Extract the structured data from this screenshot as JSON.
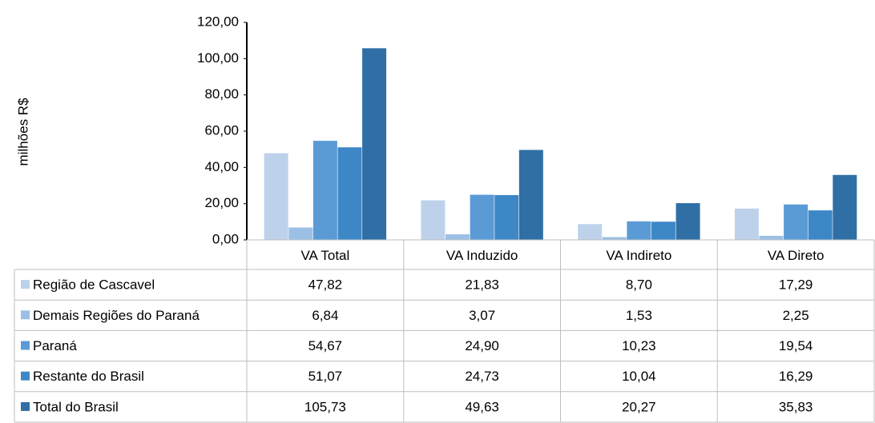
{
  "chart_data": {
    "type": "bar",
    "y_label": "milhões R$",
    "categories": [
      "VA Total",
      "VA Induzido",
      "VA Indireto",
      "VA Direto"
    ],
    "series": [
      {
        "name": "Região de Cascavel",
        "color": "#bdd2ea",
        "values": [
          47.82,
          21.83,
          8.7,
          17.29
        ],
        "value_labels": [
          "47,82",
          "21,83",
          "8,70",
          "17,29"
        ]
      },
      {
        "name": "Demais Regiões do Paraná",
        "color": "#9cc0e5",
        "values": [
          6.84,
          3.07,
          1.53,
          2.25
        ],
        "value_labels": [
          "6,84",
          "3,07",
          "1,53",
          "2,25"
        ]
      },
      {
        "name": "Paraná",
        "color": "#5a9bd6",
        "values": [
          54.67,
          24.9,
          10.23,
          19.54
        ],
        "value_labels": [
          "54,67",
          "24,90",
          "10,23",
          "19,54"
        ]
      },
      {
        "name": "Restante do Brasil",
        "color": "#3e87c7",
        "values": [
          51.07,
          24.73,
          10.04,
          16.29
        ],
        "value_labels": [
          "51,07",
          "24,73",
          "10,04",
          "16,29"
        ]
      },
      {
        "name": "Total do Brasil",
        "color": "#2f6fa5",
        "values": [
          105.73,
          49.63,
          20.27,
          35.83
        ],
        "value_labels": [
          "105,73",
          "49,63",
          "20,27",
          "35,83"
        ]
      }
    ],
    "ylim": [
      0,
      120
    ],
    "yticks": [
      {
        "value": 0,
        "label": "0,00"
      },
      {
        "value": 20,
        "label": "20,00"
      },
      {
        "value": 40,
        "label": "40,00"
      },
      {
        "value": 60,
        "label": "60,00"
      },
      {
        "value": 80,
        "label": "80,00"
      },
      {
        "value": 100,
        "label": "100,00"
      },
      {
        "value": 120,
        "label": "120,00"
      }
    ],
    "grid": false
  }
}
